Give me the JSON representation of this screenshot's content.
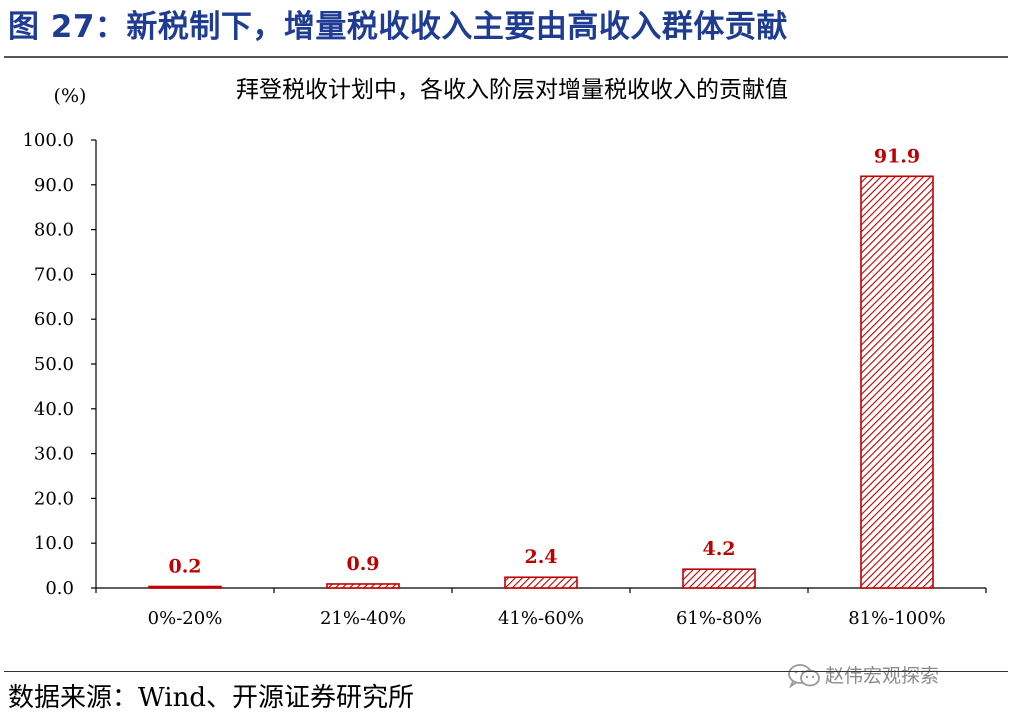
{
  "figure": {
    "title": "图 27：新税制下，增量税收收入主要由高收入群体贡献"
  },
  "source": "数据来源：Wind、开源证券研究所",
  "watermark": {
    "text": "赵伟宏观探索",
    "icon": "wechat-icon"
  },
  "colors": {
    "title": "#1f3c93",
    "bar_stroke": "#c00000",
    "bar_hatch": "#c00000",
    "data_label": "#c00000"
  },
  "chart_data": {
    "type": "bar",
    "title": "拜登税收计划中，各收入阶层对增量税收收入的贡献值",
    "unit_label": "(%)",
    "categories": [
      "0%-20%",
      "21%-40%",
      "41%-60%",
      "61%-80%",
      "81%-100%"
    ],
    "values": [
      0.2,
      0.9,
      2.4,
      4.2,
      91.9
    ],
    "data_labels": [
      "0.2",
      "0.9",
      "2.4",
      "4.2",
      "91.9"
    ],
    "ylim": [
      0,
      100
    ],
    "yticks": [
      0,
      10,
      20,
      30,
      40,
      50,
      60,
      70,
      80,
      90,
      100
    ],
    "ytick_labels": [
      "0.0",
      "10.0",
      "20.0",
      "30.0",
      "40.0",
      "50.0",
      "60.0",
      "70.0",
      "80.0",
      "90.0",
      "100.0"
    ],
    "xlabel": "",
    "ylabel": "",
    "grid": false,
    "legend": "none",
    "bar_fill": "diagonal-hatch"
  }
}
